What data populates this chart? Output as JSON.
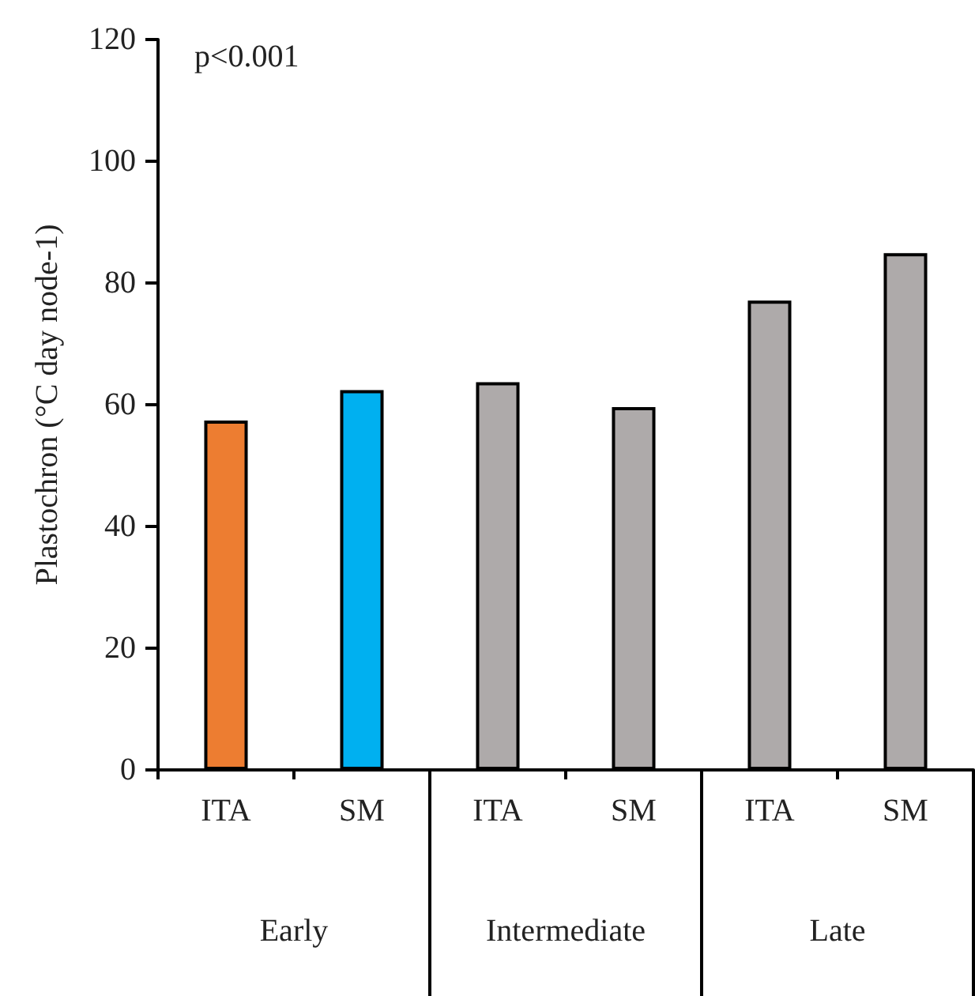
{
  "chart_data": {
    "type": "bar",
    "ylabel": "Plastochron (°C day node-1)",
    "categories": [
      "ITA",
      "SM",
      "ITA",
      "SM",
      "ITA",
      "SM"
    ],
    "values": [
      57.4,
      62.4,
      63.7,
      59.6,
      77.1,
      84.9
    ],
    "colors": [
      "#ed7d31",
      "#00b0f0",
      "#aeaaaa",
      "#aeaaaa",
      "#aeaaaa",
      "#aeaaaa"
    ],
    "ylim": [
      0,
      120
    ],
    "yticks": [
      0,
      20,
      40,
      60,
      80,
      100,
      120
    ],
    "annotations": [
      "p<0.001",
      "Early",
      "Intermediate",
      "Late"
    ],
    "grid": false
  }
}
